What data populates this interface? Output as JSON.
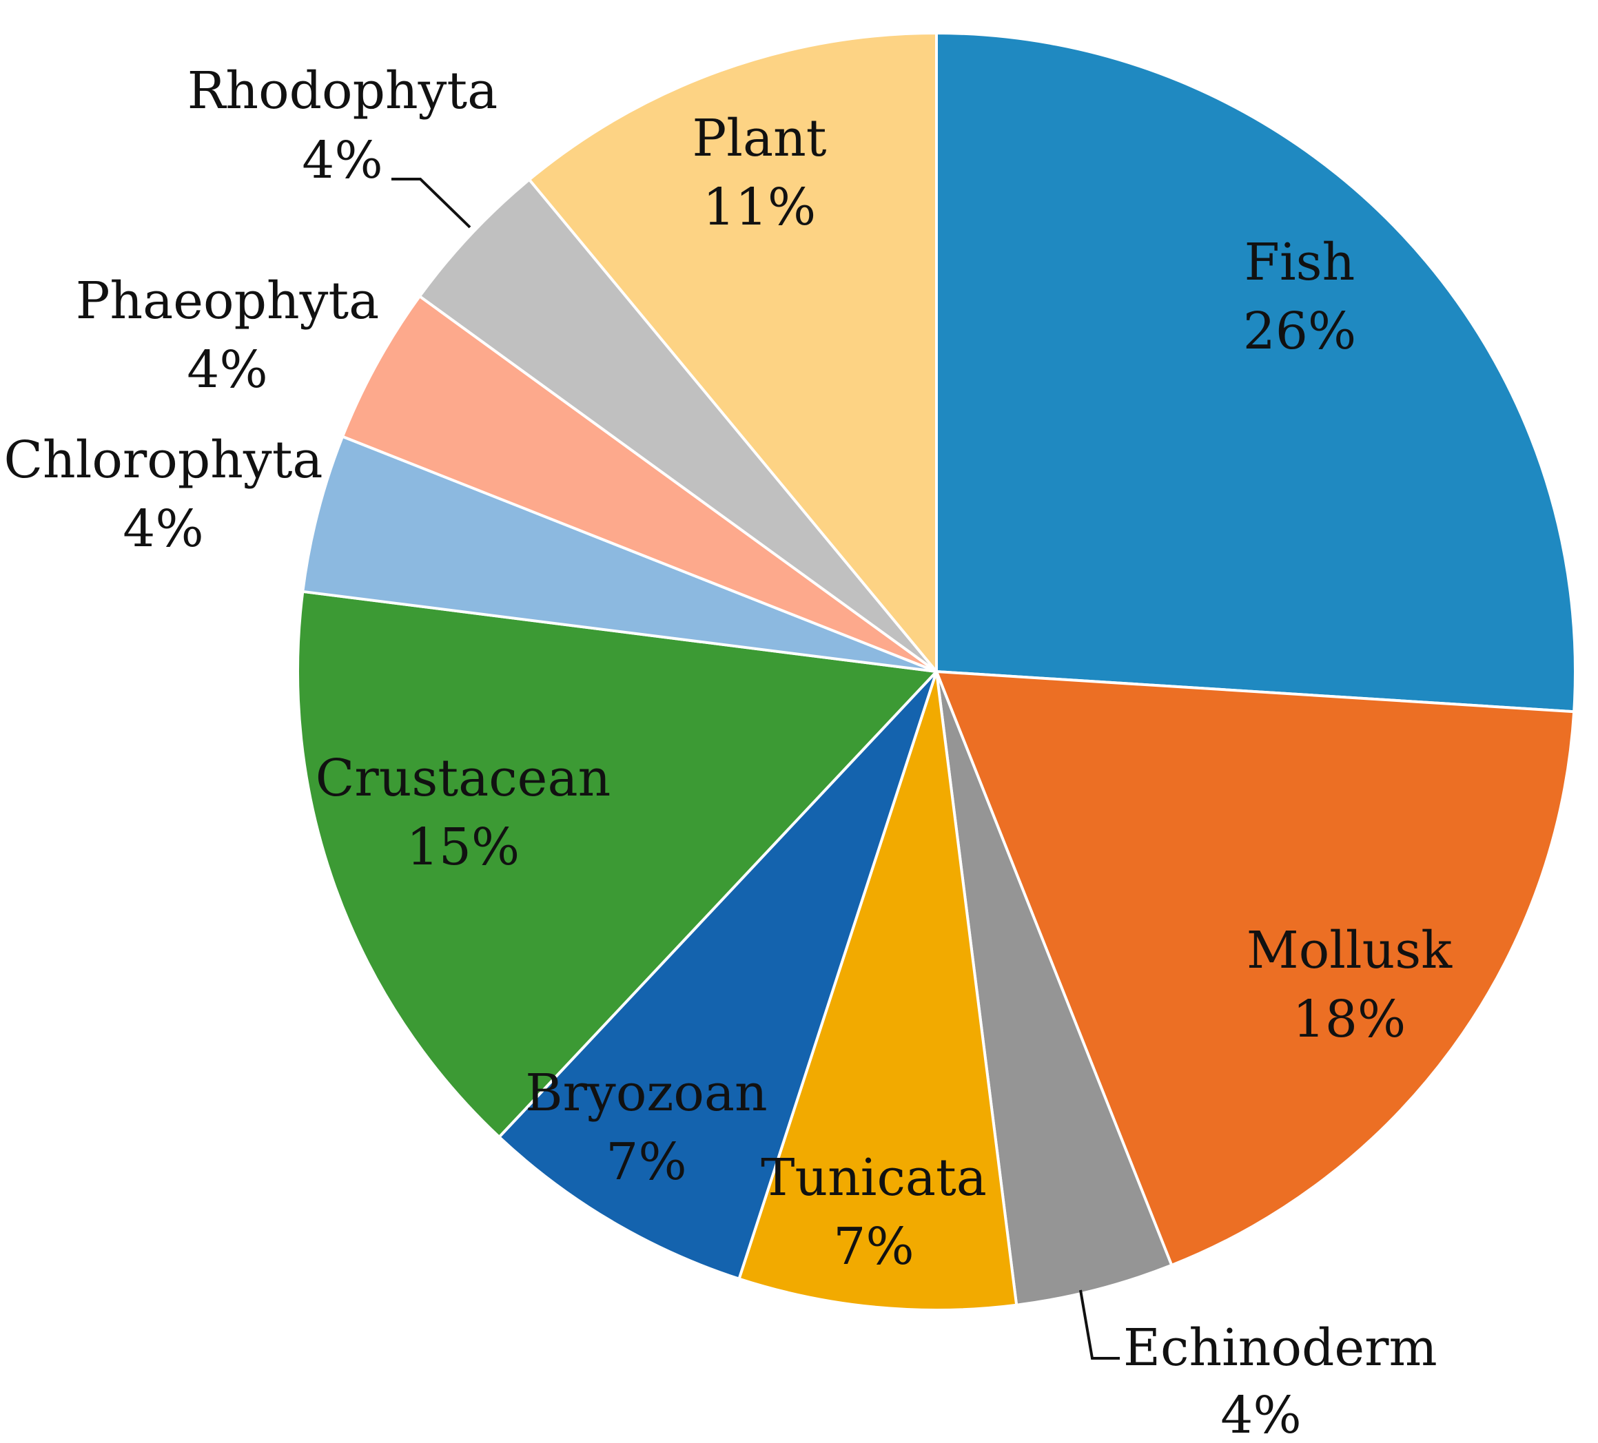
{
  "chart_data": {
    "type": "pie",
    "title": "",
    "slices": [
      {
        "label": "Fish",
        "value": 26,
        "display": "26%",
        "color": "#1f89c1"
      },
      {
        "label": "Mollusk",
        "value": 18,
        "display": "18%",
        "color": "#ec6f24"
      },
      {
        "label": "Echinoderm",
        "value": 4,
        "display": "4%",
        "color": "#959595"
      },
      {
        "label": "Tunicata",
        "value": 7,
        "display": "7%",
        "color": "#f2aa00"
      },
      {
        "label": "Bryozoan",
        "value": 7,
        "display": "7%",
        "color": "#1463ae"
      },
      {
        "label": "Crustacean",
        "value": 15,
        "display": "15%",
        "color": "#3c9a34"
      },
      {
        "label": "Chlorophyta",
        "value": 4,
        "display": "4%",
        "color": "#8cb9e0"
      },
      {
        "label": "Phaeophyta",
        "value": 4,
        "display": "4%",
        "color": "#fda98c"
      },
      {
        "label": "Rhodophyta",
        "value": 4,
        "display": "4%",
        "color": "#c0c0c0"
      },
      {
        "label": "Plant",
        "value": 11,
        "display": "11%",
        "color": "#fdd384"
      }
    ],
    "start_angle": "12 o'clock",
    "direction": "clockwise",
    "legend": "none (labels on/next to slices)"
  }
}
